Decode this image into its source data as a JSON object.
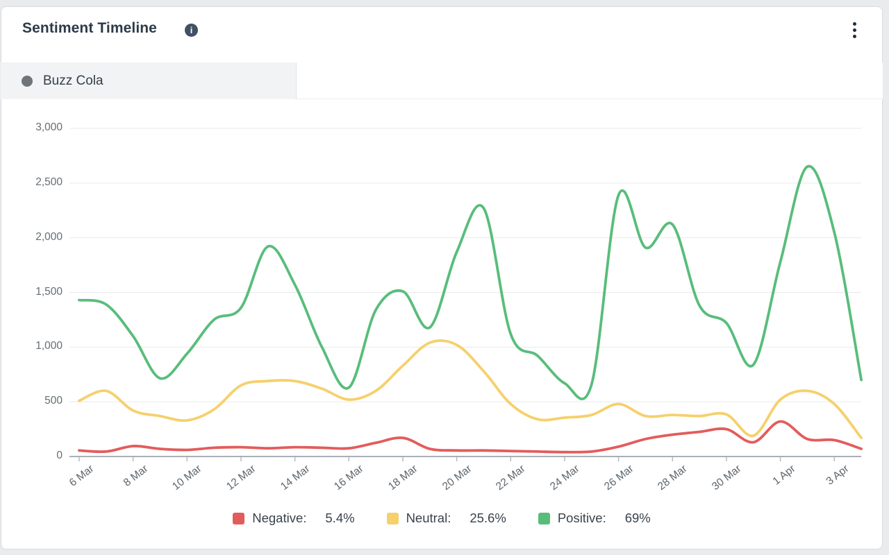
{
  "header": {
    "title": "Sentiment Timeline"
  },
  "icons": {
    "info": "info-icon",
    "menu": "kebab-menu-icon"
  },
  "tabs": [
    {
      "label": "Buzz Cola",
      "active": true,
      "dot_color": "#6f7478"
    }
  ],
  "legend": [
    {
      "label": "Negative:",
      "value": "5.4%",
      "color": "#e35c5c"
    },
    {
      "label": "Neutral:",
      "value": "25.6%",
      "color": "#f5d06c"
    },
    {
      "label": "Positive:",
      "value": "69%",
      "color": "#58bd7b"
    }
  ],
  "chart_data": {
    "type": "line",
    "smooth": true,
    "grid": true,
    "legend_position": "bottom",
    "title": "Sentiment Timeline",
    "xlabel": "",
    "ylabel": "",
    "ylim": [
      0,
      3000
    ],
    "yticks": [
      0,
      500,
      1000,
      1500,
      2000,
      2500,
      3000
    ],
    "ytick_labels": [
      "0",
      "500",
      "1,000",
      "1,500",
      "2,000",
      "2,500",
      "3,000"
    ],
    "x": [
      "6 Mar",
      "7 Mar",
      "8 Mar",
      "9 Mar",
      "10 Mar",
      "11 Mar",
      "12 Mar",
      "13 Mar",
      "14 Mar",
      "15 Mar",
      "16 Mar",
      "17 Mar",
      "18 Mar",
      "19 Mar",
      "20 Mar",
      "21 Mar",
      "22 Mar",
      "23 Mar",
      "24 Mar",
      "25 Mar",
      "26 Mar",
      "27 Mar",
      "28 Mar",
      "29 Mar",
      "30 Mar",
      "31 Mar",
      "1 Apr",
      "2 Apr",
      "3 Apr",
      "4 Apr"
    ],
    "x_tick_every": 2,
    "series": [
      {
        "name": "Negative",
        "color": "#e35c5c",
        "values": [
          55,
          45,
          95,
          70,
          60,
          80,
          85,
          75,
          85,
          80,
          75,
          125,
          170,
          70,
          55,
          55,
          50,
          45,
          40,
          45,
          90,
          160,
          200,
          225,
          250,
          130,
          320,
          160,
          150,
          70
        ]
      },
      {
        "name": "Neutral",
        "color": "#f5d06c",
        "values": [
          510,
          600,
          420,
          370,
          330,
          430,
          650,
          690,
          690,
          620,
          520,
          600,
          830,
          1040,
          1020,
          780,
          480,
          340,
          355,
          380,
          480,
          370,
          380,
          370,
          385,
          190,
          520,
          600,
          480,
          170
        ]
      },
      {
        "name": "Positive",
        "color": "#58bd7b",
        "values": [
          1430,
          1390,
          1100,
          715,
          940,
          1250,
          1360,
          1920,
          1570,
          1000,
          630,
          1340,
          1510,
          1180,
          1870,
          2270,
          1120,
          920,
          670,
          660,
          2390,
          1910,
          2120,
          1380,
          1220,
          840,
          1780,
          2650,
          2050,
          700
        ]
      }
    ]
  },
  "style_colors": {
    "gridline": "#e7e9ea",
    "axis_line": "#a8afb5",
    "tick": "#b6bcc1",
    "page_bg": "#e9ebed",
    "card_bg": "#ffffff"
  }
}
